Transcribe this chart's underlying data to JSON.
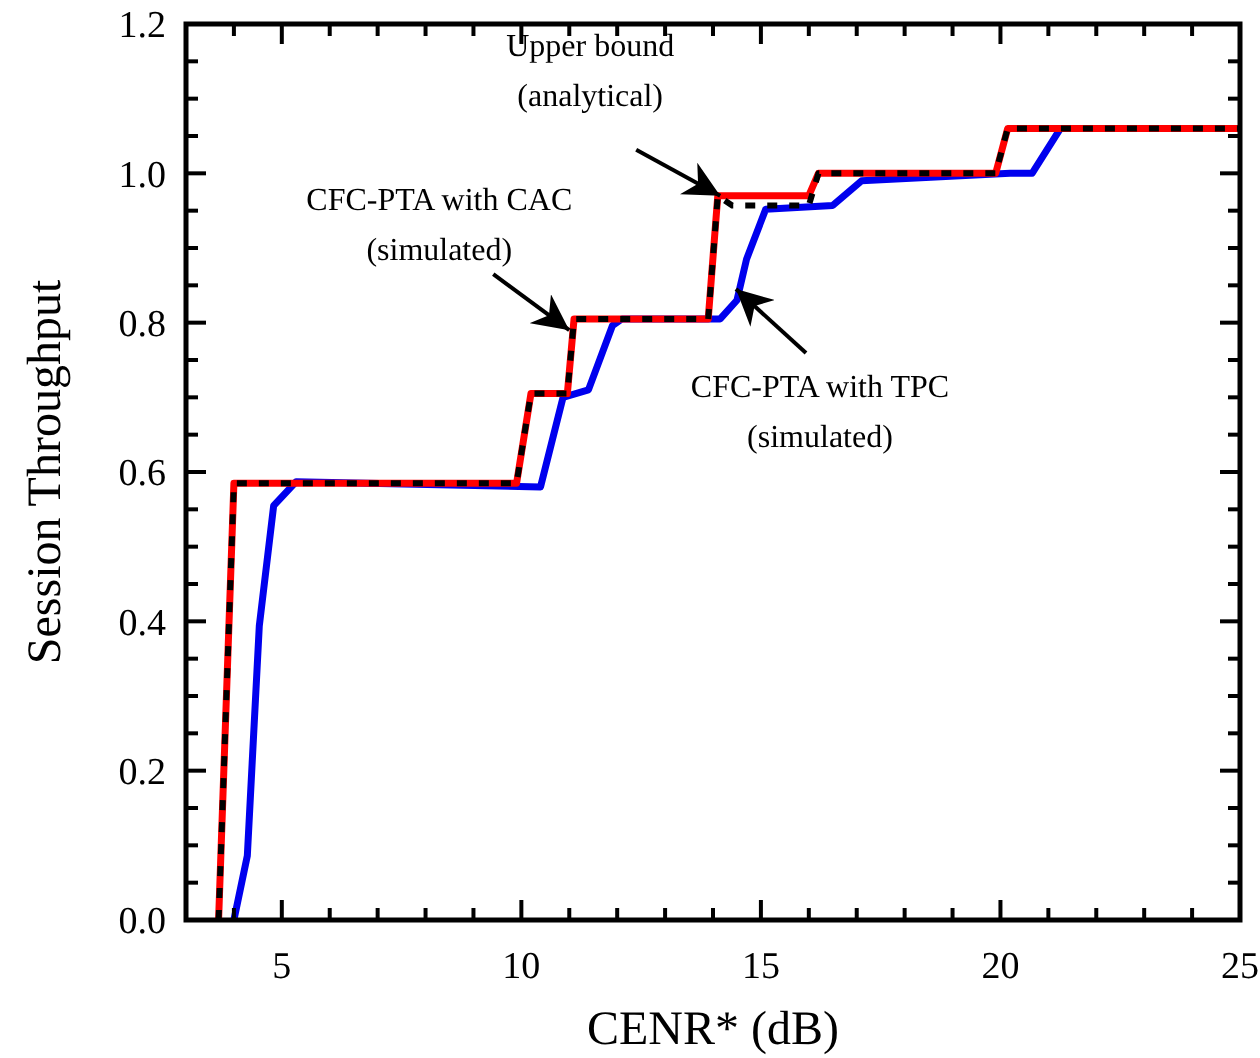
{
  "chart_data": {
    "type": "line",
    "xlabel": "CENR* (dB)",
    "ylabel": "Session Throughput",
    "xlim": [
      3,
      25
    ],
    "ylim": [
      0,
      1.2
    ],
    "xticks": [
      {
        "value": 4,
        "label": null
      },
      5,
      {
        "value": 6,
        "label": null
      },
      {
        "value": 7,
        "label": null
      },
      {
        "value": 8,
        "label": null
      },
      {
        "value": 9,
        "label": null
      },
      10,
      {
        "value": 11,
        "label": null
      },
      {
        "value": 12,
        "label": null
      },
      {
        "value": 13,
        "label": null
      },
      {
        "value": 14,
        "label": null
      },
      15,
      {
        "value": 16,
        "label": null
      },
      {
        "value": 17,
        "label": null
      },
      {
        "value": 18,
        "label": null
      },
      {
        "value": 19,
        "label": null
      },
      20,
      {
        "value": 21,
        "label": null
      },
      {
        "value": 22,
        "label": null
      },
      {
        "value": 23,
        "label": null
      },
      {
        "value": 24,
        "label": null
      },
      25
    ],
    "yticks": [
      "0.0",
      {
        "value": 0.05,
        "label": null
      },
      {
        "value": 0.1,
        "label": null
      },
      {
        "value": 0.15,
        "label": null
      },
      {
        "value": 0.2,
        "label": "0.2"
      },
      {
        "value": 0.25,
        "label": null
      },
      {
        "value": 0.3,
        "label": null
      },
      {
        "value": 0.35,
        "label": null
      },
      {
        "value": 0.4,
        "label": "0.4"
      },
      {
        "value": 0.45,
        "label": null
      },
      {
        "value": 0.5,
        "label": null
      },
      {
        "value": 0.55,
        "label": null
      },
      {
        "value": 0.6,
        "label": "0.6"
      },
      {
        "value": 0.65,
        "label": null
      },
      {
        "value": 0.7,
        "label": null
      },
      {
        "value": 0.75,
        "label": null
      },
      {
        "value": 0.8,
        "label": "0.8"
      },
      {
        "value": 0.85,
        "label": null
      },
      {
        "value": 0.9,
        "label": null
      },
      {
        "value": 0.95,
        "label": null
      },
      {
        "value": 1.0,
        "label": "1.0"
      },
      {
        "value": 1.05,
        "label": null
      },
      {
        "value": 1.1,
        "label": null
      },
      {
        "value": 1.15,
        "label": null
      },
      {
        "value": 1.2,
        "label": "1.2"
      }
    ],
    "grid": false,
    "marker": "none",
    "series": [
      {
        "color": "#0000ee",
        "line_style": "solid",
        "x": [
          4.0,
          4.28,
          4.53,
          4.83,
          5.3,
          10.4,
          10.87,
          11.4,
          11.9,
          12.1,
          14.15,
          14.5,
          14.7,
          15.1,
          16.5,
          17.1,
          20.2,
          20.66,
          21.25,
          25
        ],
        "values": [
          0,
          0.086,
          0.394,
          0.555,
          0.587,
          0.58,
          0.7,
          0.71,
          0.796,
          0.805,
          0.805,
          0.83,
          0.885,
          0.952,
          0.957,
          0.99,
          1.0,
          1.0,
          1.06,
          1.06
        ]
      },
      {
        "color": "#ff0000",
        "line_style": "solid",
        "x": [
          3.68,
          4.0,
          9.9,
          10.2,
          10.96,
          11.1,
          13.9,
          14.1,
          16.0,
          16.2,
          19.9,
          20.15,
          25
        ],
        "values": [
          0,
          0.585,
          0.585,
          0.705,
          0.705,
          0.805,
          0.805,
          0.97,
          0.97,
          1.0,
          1.0,
          1.06,
          1.06
        ]
      },
      {
        "color": "#000000",
        "line_style": "dotted",
        "x": [
          3.68,
          4.0,
          9.9,
          10.2,
          10.96,
          11.1,
          13.9,
          14.1,
          14.4,
          16.0,
          16.2,
          19.9,
          20.15,
          25
        ],
        "values": [
          0,
          0.585,
          0.585,
          0.705,
          0.705,
          0.805,
          0.805,
          0.97,
          0.957,
          0.957,
          1.0,
          1.0,
          1.06,
          1.06
        ]
      }
    ],
    "annotations": [
      {
        "text": "Upper bound\n(analytical)",
        "x": 14.15,
        "y": 0.97
      },
      {
        "text": "CFC-PTA with CAC\n(simulated)",
        "x": 11.0,
        "y": 0.79
      },
      {
        "text": "CFC-PTA with TPC\n(simulated)",
        "x": 14.48,
        "y": 0.845
      }
    ]
  }
}
